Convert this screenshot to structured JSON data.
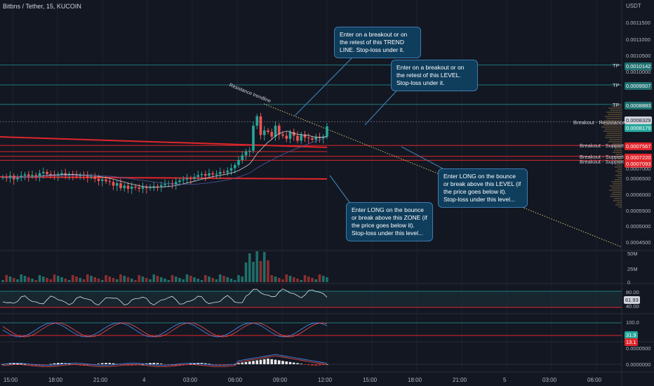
{
  "header": {
    "title": "Bitbns / Tether, 15, KUCOIN",
    "unit": "USDT"
  },
  "y_axis_ticks": [
    "0.0011500",
    "0.0011000",
    "0.0010500",
    "0.0010000",
    "0.0009500",
    "0.0009000",
    "0.0008500",
    "0.0008000",
    "0.0007500",
    "0.0007000",
    "0.0006500",
    "0.0006000",
    "0.0005500",
    "0.0005000",
    "0.0004500"
  ],
  "x_axis_ticks": [
    "15:00",
    "18:00",
    "21:00",
    "4",
    "03:00",
    "06:00",
    "09:00",
    "12:00",
    "15:00",
    "18:00",
    "21:00",
    "5",
    "03:00",
    "06:00"
  ],
  "price_labels": [
    {
      "value": "0.0010142",
      "tag": "TP",
      "kind": "teal"
    },
    {
      "value": "0.0009507",
      "tag": "TP",
      "kind": "teal"
    },
    {
      "value": "0.0008883",
      "tag": "TP",
      "kind": "teal"
    },
    {
      "value": "0.0008329",
      "tag": "Breakout - Resistance",
      "kind": "gray"
    },
    {
      "value": "0.0008179",
      "tag": "",
      "kind": "teal"
    },
    {
      "value": "0.0007567",
      "tag": "Breakout - Support",
      "kind": "red"
    },
    {
      "value": "0.0007220",
      "tag": "Breakout - Support",
      "kind": "red"
    },
    {
      "value": "0.0007093",
      "tag": "Breakout - Support",
      "kind": "red"
    }
  ],
  "annotations": {
    "trendline_label": "Resistance trendline",
    "note1": "Enter on a breakout or on the retest of this TREND LINE. Stop-loss under it.",
    "note2": "Enter on a breakout or on the retest of this LEVEL. Stop-loss under it.",
    "note3": "Enter LONG on the bounce or break above this LEVEL (if the price goes below it). Stop-loss under this level...",
    "note4": "Enter LONG on the bounce or break above this ZONE (if the price goes below it). Stop-loss under this level..."
  },
  "volume_axis": [
    "50M",
    "25M",
    "0"
  ],
  "rsi": {
    "upper": "80.00",
    "lower": "40.00",
    "value": "61.93"
  },
  "stoch": {
    "upper": "100.0",
    "k": "31.9",
    "d": "13.1"
  },
  "macd": {
    "upper": "0.0000500",
    "zero": "0.0000000"
  },
  "colors": {
    "bg": "#131722",
    "up": "#26a69a",
    "down": "#ef5350",
    "teal_line": "#1f7a7a",
    "red_line": "#e0262b",
    "note_bg": "#0f3d5c"
  },
  "chart_data": {
    "type": "candlestick",
    "title": "Bitbns / Tether, 15, KUCOIN",
    "ylabel": "USDT",
    "ylim": [
      0.00043,
      0.00119
    ],
    "x_ticks": [
      "15:00",
      "18:00",
      "21:00",
      "4",
      "03:00",
      "06:00",
      "09:00",
      "12:00",
      "15:00",
      "18:00",
      "21:00",
      "5",
      "03:00",
      "06:00"
    ],
    "close": [
      0.000655,
      0.000652,
      0.00066,
      0.000648,
      0.000653,
      0.00066,
      0.000664,
      0.000658,
      0.000662,
      0.000655,
      0.000668,
      0.000672,
      0.000665,
      0.000662,
      0.00066,
      0.000664,
      0.000668,
      0.00066,
      0.000665,
      0.000662,
      0.000658,
      0.000663,
      0.00066,
      0.000655,
      0.000658,
      0.00065,
      0.000643,
      0.000648,
      0.000642,
      0.00064,
      0.000628,
      0.000636,
      0.00062,
      0.000628,
      0.000618,
      0.000625,
      0.000622,
      0.000618,
      0.000624,
      0.00062,
      0.000622,
      0.000626,
      0.000625,
      0.00063,
      0.000634,
      0.000636,
      0.000632,
      0.00064,
      0.000645,
      0.000648,
      0.000652,
      0.00065,
      0.000656,
      0.000662,
      0.000665,
      0.00066,
      0.000668,
      0.000664,
      0.000666,
      0.000672,
      0.00067,
      0.000676,
      0.000684,
      0.000694,
      0.00071,
      0.000725,
      0.000738,
      0.00074,
      0.00082,
      0.00085,
      0.00079,
      0.000805,
      0.0008,
      0.000785,
      0.00082,
      0.000792,
      0.000788,
      0.000778,
      0.0008,
      0.000788,
      0.000772,
      0.000792,
      0.000782,
      0.00078,
      0.000775,
      0.000783,
      0.00078,
      0.000785,
      0.000818
    ],
    "resistance_trendline": {
      "label": "Resistance trendline"
    },
    "levels": [
      {
        "label": "TP",
        "value": 0.0010142
      },
      {
        "label": "TP",
        "value": 0.0009507
      },
      {
        "label": "TP",
        "value": 0.0008883
      },
      {
        "label": "Breakout - Resistance",
        "value": 0.0008329
      },
      {
        "label": "Breakout - Support",
        "value": 0.0007567
      },
      {
        "label": "Breakout - Support",
        "value": 0.000722
      },
      {
        "label": "Breakout - Support",
        "value": 0.0007093
      }
    ]
  }
}
